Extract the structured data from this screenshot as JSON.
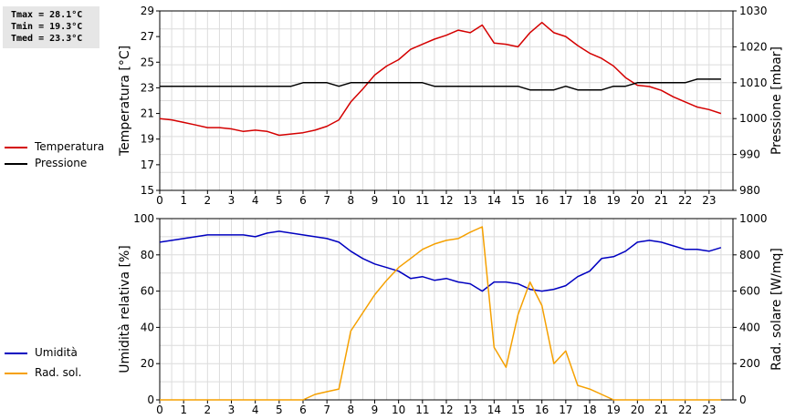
{
  "stats": {
    "tmax": "Tmax = 28.1°C",
    "tmin": "Tmin = 19.3°C",
    "tmed": "Tmed = 23.3°C"
  },
  "legend_top": [
    {
      "label": "Temperatura",
      "color": "#d40000"
    },
    {
      "label": "Pressione",
      "color": "#000000"
    }
  ],
  "legend_bottom": [
    {
      "label": "Umidità",
      "color": "#0000c0"
    },
    {
      "label": "Rad. sol.",
      "color": "#f5a000"
    }
  ],
  "chart_data": [
    {
      "type": "line",
      "x_ticks": [
        "0",
        "1",
        "2",
        "3",
        "4",
        "5",
        "6",
        "7",
        "8",
        "9",
        "10",
        "11",
        "12",
        "13",
        "14",
        "15",
        "16",
        "17",
        "18",
        "19",
        "20",
        "21",
        "22",
        "23"
      ],
      "xlim": [
        0,
        24
      ],
      "left_axis": {
        "label": "Temperatura [°C]",
        "ylim": [
          15,
          29
        ],
        "ticks": [
          15,
          17,
          19,
          21,
          23,
          25,
          27,
          29
        ]
      },
      "right_axis": {
        "label": "Pressione [mbar]",
        "ylim": [
          980,
          1030
        ],
        "ticks": [
          980,
          990,
          1000,
          1010,
          1020,
          1030
        ]
      },
      "grid": true,
      "series": [
        {
          "name": "Temperatura",
          "axis": "left",
          "color": "#d40000",
          "x": [
            0,
            0.5,
            1,
            1.5,
            2,
            2.5,
            3,
            3.5,
            4,
            4.5,
            5,
            5.5,
            6,
            6.5,
            7,
            7.5,
            8,
            8.5,
            9,
            9.5,
            10,
            10.5,
            11,
            11.5,
            12,
            12.5,
            13,
            13.5,
            14,
            14.5,
            15,
            15.5,
            16,
            16.5,
            17,
            17.5,
            18,
            18.5,
            19,
            19.5,
            20,
            20.5,
            21,
            21.5,
            22,
            22.5,
            23,
            23.5
          ],
          "y": [
            20.6,
            20.5,
            20.3,
            20.1,
            19.9,
            19.9,
            19.8,
            19.6,
            19.7,
            19.6,
            19.3,
            19.4,
            19.5,
            19.7,
            20.0,
            20.5,
            21.9,
            22.9,
            24.0,
            24.7,
            25.2,
            26.0,
            26.4,
            26.8,
            27.1,
            27.5,
            27.3,
            27.9,
            26.5,
            26.4,
            26.2,
            27.3,
            28.1,
            27.3,
            27.0,
            26.3,
            25.7,
            25.3,
            24.7,
            23.8,
            23.2,
            23.1,
            22.8,
            22.3,
            21.9,
            21.5,
            21.3,
            21.0
          ]
        },
        {
          "name": "Pressione",
          "axis": "right",
          "color": "#000000",
          "x": [
            0,
            0.5,
            1,
            1.5,
            2,
            2.5,
            3,
            3.5,
            4,
            4.5,
            5,
            5.5,
            6,
            6.5,
            7,
            7.5,
            8,
            8.5,
            9,
            9.5,
            10,
            10.5,
            11,
            11.5,
            12,
            12.5,
            13,
            13.5,
            14,
            14.5,
            15,
            15.5,
            16,
            16.5,
            17,
            17.5,
            18,
            18.5,
            19,
            19.5,
            20,
            20.5,
            21,
            21.5,
            22,
            22.5,
            23,
            23.5
          ],
          "y": [
            1009,
            1009,
            1009,
            1009,
            1009,
            1009,
            1009,
            1009,
            1009,
            1009,
            1009,
            1009,
            1010,
            1010,
            1010,
            1009,
            1010,
            1010,
            1010,
            1010,
            1010,
            1010,
            1010,
            1009,
            1009,
            1009,
            1009,
            1009,
            1009,
            1009,
            1009,
            1008,
            1008,
            1008,
            1009,
            1008,
            1008,
            1008,
            1009,
            1009,
            1010,
            1010,
            1010,
            1010,
            1010,
            1011,
            1011,
            1011
          ]
        }
      ]
    },
    {
      "type": "line",
      "x_ticks": [
        "0",
        "1",
        "2",
        "3",
        "4",
        "5",
        "6",
        "7",
        "8",
        "9",
        "10",
        "11",
        "12",
        "13",
        "14",
        "15",
        "16",
        "17",
        "18",
        "19",
        "20",
        "21",
        "22",
        "23"
      ],
      "xlim": [
        0,
        24
      ],
      "left_axis": {
        "label": "Umidità relativa [%]",
        "ylim": [
          0,
          100
        ],
        "ticks": [
          0,
          20,
          40,
          60,
          80,
          100
        ]
      },
      "right_axis": {
        "label": "Rad. solare [W/mq]",
        "ylim": [
          0,
          1000
        ],
        "ticks": [
          0,
          200,
          400,
          600,
          800,
          1000
        ]
      },
      "grid": true,
      "series": [
        {
          "name": "Umidità",
          "axis": "left",
          "color": "#0000c0",
          "x": [
            0,
            0.5,
            1,
            1.5,
            2,
            2.5,
            3,
            3.5,
            4,
            4.5,
            5,
            5.5,
            6,
            6.5,
            7,
            7.5,
            8,
            8.5,
            9,
            9.5,
            10,
            10.5,
            11,
            11.5,
            12,
            12.5,
            13,
            13.5,
            14,
            14.5,
            15,
            15.5,
            16,
            16.5,
            17,
            17.5,
            18,
            18.5,
            19,
            19.5,
            20,
            20.5,
            21,
            21.5,
            22,
            22.5,
            23,
            23.5
          ],
          "y": [
            87,
            88,
            89,
            90,
            91,
            91,
            91,
            91,
            90,
            92,
            93,
            92,
            91,
            90,
            89,
            87,
            82,
            78,
            75,
            73,
            71,
            67,
            68,
            66,
            67,
            65,
            64,
            60,
            65,
            65,
            64,
            61,
            60,
            61,
            63,
            68,
            71,
            78,
            79,
            82,
            87,
            88,
            87,
            85,
            83,
            83,
            82,
            84
          ]
        },
        {
          "name": "Rad. sol.",
          "axis": "right",
          "color": "#f5a000",
          "x": [
            0,
            0.5,
            1,
            1.5,
            2,
            2.5,
            3,
            3.5,
            4,
            4.5,
            5,
            5.5,
            6,
            6.5,
            7,
            7.5,
            8,
            8.5,
            9,
            9.5,
            10,
            10.5,
            11,
            11.5,
            12,
            12.5,
            13,
            13.5,
            14,
            14.5,
            15,
            15.5,
            16,
            16.5,
            17,
            17.5,
            18,
            18.5,
            19,
            19.5,
            20,
            20.5,
            21,
            21.5,
            22,
            22.5,
            23,
            23.5
          ],
          "y": [
            0,
            0,
            0,
            0,
            0,
            0,
            0,
            0,
            0,
            0,
            0,
            0,
            0,
            30,
            45,
            60,
            380,
            480,
            580,
            660,
            730,
            780,
            830,
            860,
            880,
            890,
            925,
            955,
            290,
            180,
            470,
            650,
            520,
            200,
            270,
            80,
            60,
            30,
            0,
            0,
            0,
            0,
            0,
            0,
            0,
            0,
            0,
            0
          ]
        }
      ]
    }
  ]
}
